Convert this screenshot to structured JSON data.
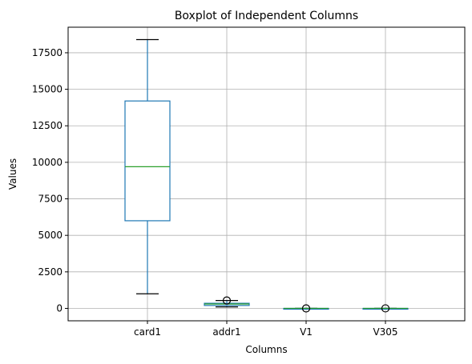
{
  "chart_data": {
    "type": "boxplot",
    "title": "Boxplot of Independent Columns",
    "xlabel": "Columns",
    "ylabel": "Values",
    "ylim": [
      -850,
      19250
    ],
    "yticks": [
      0,
      2500,
      5000,
      7500,
      10000,
      12500,
      15000,
      17500
    ],
    "ytick_labels": [
      "0",
      "2500",
      "5000",
      "7500",
      "10000",
      "12500",
      "15000",
      "17500"
    ],
    "grid": true,
    "categories": [
      "card1",
      "addr1",
      "V1",
      "V305"
    ],
    "boxes": [
      {
        "name": "card1",
        "whisker_low": 1000,
        "q1": 6000,
        "median": 9700,
        "q3": 14200,
        "whisker_high": 18400,
        "outliers": []
      },
      {
        "name": "addr1",
        "whisker_low": 100,
        "q1": 200,
        "median": 300,
        "q3": 350,
        "whisker_high": 540,
        "outliers": [
          540
        ]
      },
      {
        "name": "V1",
        "whisker_low": 1,
        "q1": 1,
        "median": 1,
        "q3": 1,
        "whisker_high": 1,
        "outliers": [
          0
        ]
      },
      {
        "name": "V305",
        "whisker_low": 1,
        "q1": 1,
        "median": 1,
        "q3": 1,
        "whisker_high": 1,
        "outliers": [
          2
        ]
      }
    ],
    "colors": {
      "box": "#1f77b4",
      "median": "#2ca02c",
      "whisker_cap": "#000000",
      "grid": "#b0b0b0",
      "axes": "#000000"
    }
  }
}
